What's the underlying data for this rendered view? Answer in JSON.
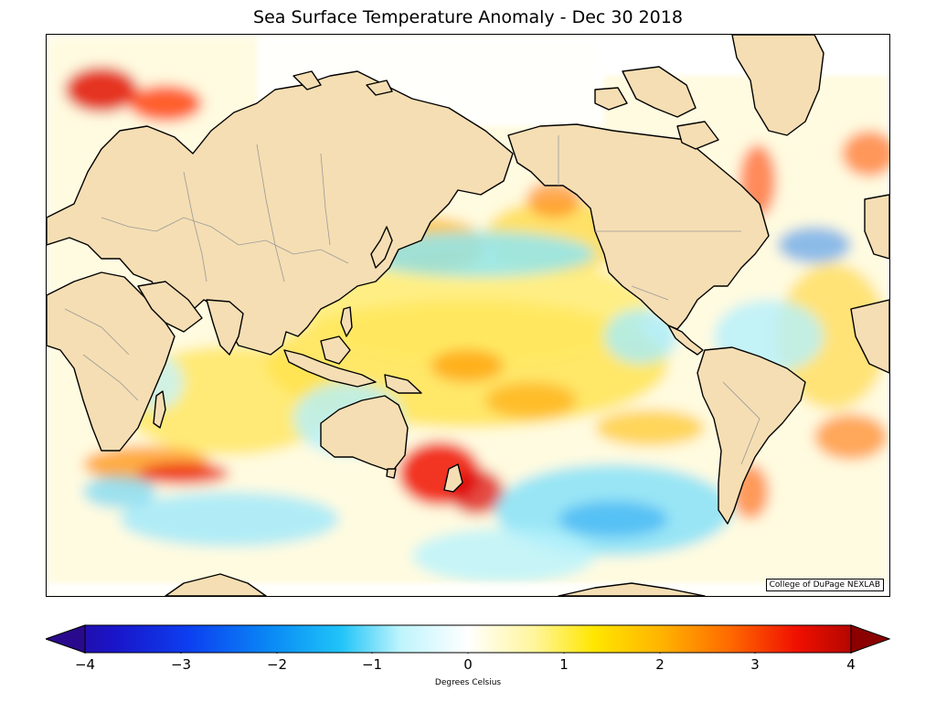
{
  "title": "Sea Surface Temperature Anomaly - Dec 30 2018",
  "credit": "College of DuPage NEXLAB",
  "colorbar": {
    "label": "Degrees Celsius",
    "ticks": [
      "−4",
      "−3",
      "−2",
      "−1",
      "0",
      "1",
      "2",
      "3",
      "4"
    ],
    "range": [
      -4,
      4
    ],
    "colors": [
      "#2a0a8c",
      "#0c3ff0",
      "#0a8cf5",
      "#20c4f8",
      "#bdf4fc",
      "#ffffff",
      "#fff59a",
      "#ffe600",
      "#ffb300",
      "#ff6a00",
      "#f01000",
      "#c80000",
      "#8b0000"
    ]
  },
  "map": {
    "land_color": "#f5deb3",
    "coastline_color": "#000000",
    "border_color": "#9a9a9a"
  }
}
